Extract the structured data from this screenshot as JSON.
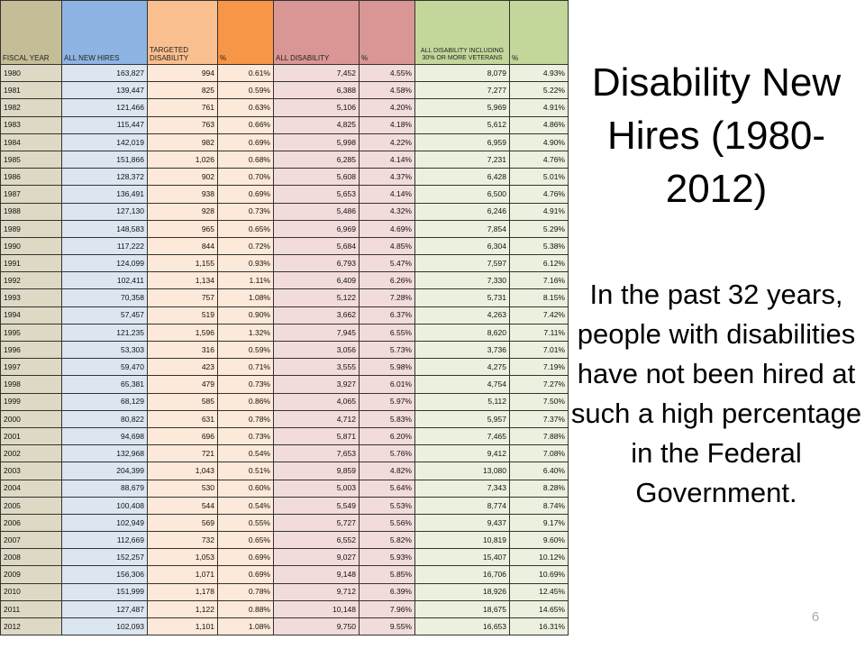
{
  "slide": {
    "title": "Disability New Hires (1980-2012)",
    "body": "In the past 32 years, people with disabilities have not been hired at such a high percentage in the Federal Government.",
    "page_number": "6"
  },
  "table": {
    "headers": [
      "FISCAL YEAR",
      "ALL NEW HIRES",
      "TARGETED DISABILITY",
      "%",
      "ALL DISABILITY",
      "%",
      "ALL DISABILITY INCLUDING 30% OR MORE VETERANS",
      "%"
    ],
    "rows": [
      [
        "1980",
        "163,827",
        "994",
        "0.61%",
        "7,452",
        "4.55%",
        "8,079",
        "4.93%"
      ],
      [
        "1981",
        "139,447",
        "825",
        "0.59%",
        "6,388",
        "4.58%",
        "7,277",
        "5.22%"
      ],
      [
        "1982",
        "121,466",
        "761",
        "0.63%",
        "5,106",
        "4.20%",
        "5,969",
        "4.91%"
      ],
      [
        "1983",
        "115,447",
        "763",
        "0.66%",
        "4,825",
        "4.18%",
        "5,612",
        "4.86%"
      ],
      [
        "1984",
        "142,019",
        "982",
        "0.69%",
        "5,998",
        "4.22%",
        "6,959",
        "4.90%"
      ],
      [
        "1985",
        "151,866",
        "1,026",
        "0.68%",
        "6,285",
        "4.14%",
        "7,231",
        "4.76%"
      ],
      [
        "1986",
        "128,372",
        "902",
        "0.70%",
        "5,608",
        "4.37%",
        "6,428",
        "5.01%"
      ],
      [
        "1987",
        "136,491",
        "938",
        "0.69%",
        "5,653",
        "4.14%",
        "6,500",
        "4.76%"
      ],
      [
        "1988",
        "127,130",
        "928",
        "0.73%",
        "5,486",
        "4.32%",
        "6,246",
        "4.91%"
      ],
      [
        "1989",
        "148,583",
        "965",
        "0.65%",
        "6,969",
        "4.69%",
        "7,854",
        "5.29%"
      ],
      [
        "1990",
        "117,222",
        "844",
        "0.72%",
        "5,684",
        "4.85%",
        "6,304",
        "5.38%"
      ],
      [
        "1991",
        "124,099",
        "1,155",
        "0.93%",
        "6,793",
        "5.47%",
        "7,597",
        "6.12%"
      ],
      [
        "1992",
        "102,411",
        "1,134",
        "1.11%",
        "6,409",
        "6.26%",
        "7,330",
        "7.16%"
      ],
      [
        "1993",
        "70,358",
        "757",
        "1.08%",
        "5,122",
        "7.28%",
        "5,731",
        "8.15%"
      ],
      [
        "1994",
        "57,457",
        "519",
        "0.90%",
        "3,662",
        "6.37%",
        "4,263",
        "7.42%"
      ],
      [
        "1995",
        "121,235",
        "1,596",
        "1.32%",
        "7,945",
        "6.55%",
        "8,620",
        "7.11%"
      ],
      [
        "1996",
        "53,303",
        "316",
        "0.59%",
        "3,056",
        "5.73%",
        "3,736",
        "7.01%"
      ],
      [
        "1997",
        "59,470",
        "423",
        "0.71%",
        "3,555",
        "5.98%",
        "4,275",
        "7.19%"
      ],
      [
        "1998",
        "65,381",
        "479",
        "0.73%",
        "3,927",
        "6.01%",
        "4,754",
        "7.27%"
      ],
      [
        "1999",
        "68,129",
        "585",
        "0.86%",
        "4,065",
        "5.97%",
        "5,112",
        "7.50%"
      ],
      [
        "2000",
        "80,822",
        "631",
        "0.78%",
        "4,712",
        "5.83%",
        "5,957",
        "7.37%"
      ],
      [
        "2001",
        "94,698",
        "696",
        "0.73%",
        "5,871",
        "6.20%",
        "7,465",
        "7.88%"
      ],
      [
        "2002",
        "132,968",
        "721",
        "0.54%",
        "7,653",
        "5.76%",
        "9,412",
        "7.08%"
      ],
      [
        "2003",
        "204,399",
        "1,043",
        "0.51%",
        "9,859",
        "4.82%",
        "13,080",
        "6.40%"
      ],
      [
        "2004",
        "88,679",
        "530",
        "0.60%",
        "5,003",
        "5.64%",
        "7,343",
        "8.28%"
      ],
      [
        "2005",
        "100,408",
        "544",
        "0.54%",
        "5,549",
        "5.53%",
        "8,774",
        "8.74%"
      ],
      [
        "2006",
        "102,949",
        "569",
        "0.55%",
        "5,727",
        "5.56%",
        "9,437",
        "9.17%"
      ],
      [
        "2007",
        "112,669",
        "732",
        "0.65%",
        "6,552",
        "5.82%",
        "10,819",
        "9.60%"
      ],
      [
        "2008",
        "152,257",
        "1,053",
        "0.69%",
        "9,027",
        "5.93%",
        "15,407",
        "10.12%"
      ],
      [
        "2009",
        "156,306",
        "1,071",
        "0.69%",
        "9,148",
        "5.85%",
        "16,706",
        "10.69%"
      ],
      [
        "2010",
        "151,999",
        "1,178",
        "0.78%",
        "9,712",
        "6.39%",
        "18,926",
        "12.45%"
      ],
      [
        "2011",
        "127,487",
        "1,122",
        "0.88%",
        "10,148",
        "7.96%",
        "18,675",
        "14.65%"
      ],
      [
        "2012",
        "102,093",
        "1,101",
        "1.08%",
        "9,750",
        "9.55%",
        "16,653",
        "16.31%"
      ]
    ]
  }
}
